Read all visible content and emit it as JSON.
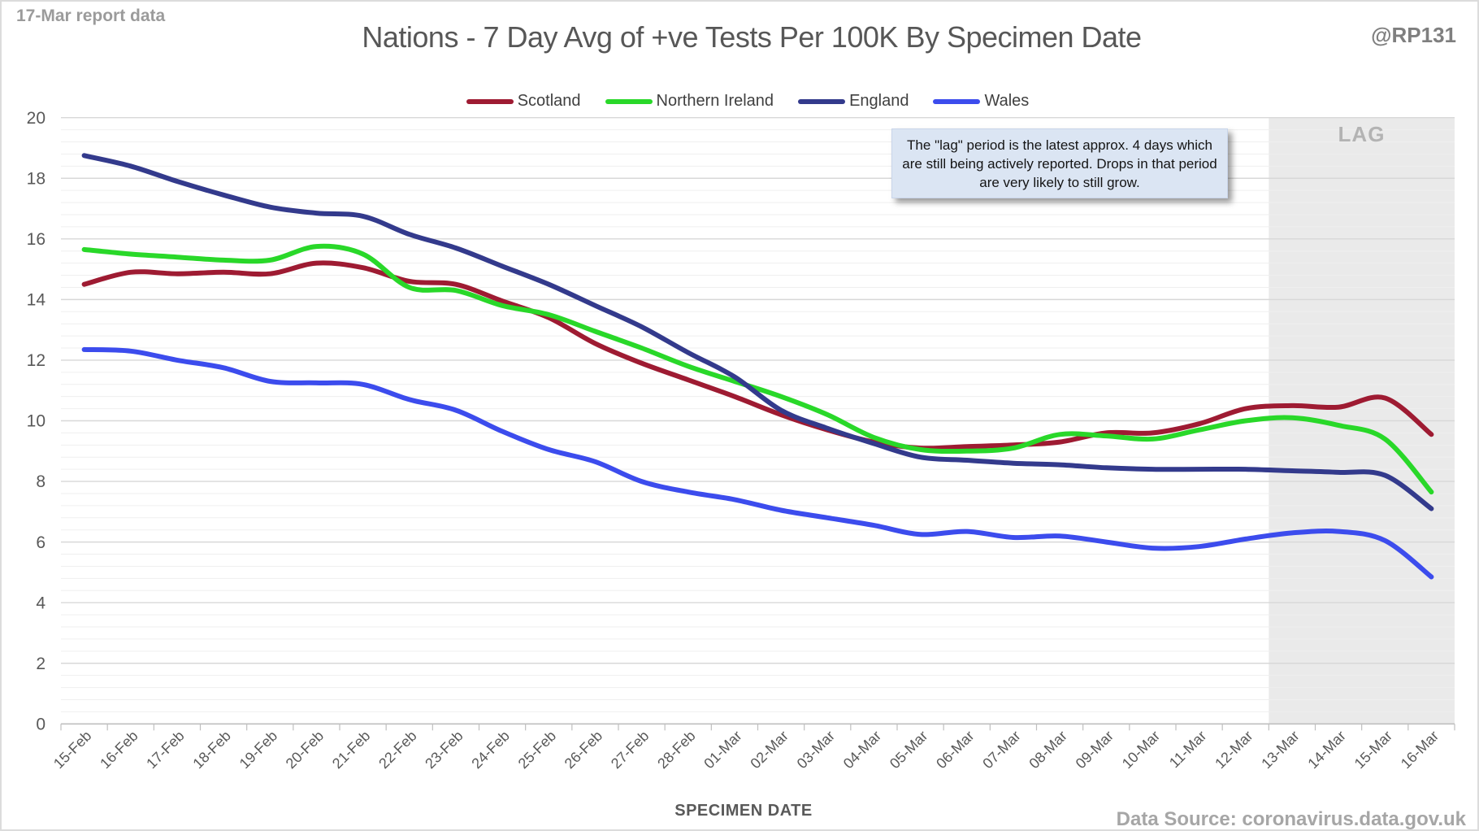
{
  "header": {
    "report_label": "17-Mar report data",
    "title": "Nations - 7 Day Avg of +ve Tests Per 100K By Specimen Date",
    "handle": "@RP131"
  },
  "labels": {
    "lag": "LAG",
    "data_source": "Data Source: coronavirus.data.gov.uk"
  },
  "annotation": {
    "text": "The \"lag\" period is the latest approx. 4 days which are still being actively reported. Drops in that period are very likely to still grow."
  },
  "colors": {
    "scotland": "#9e1b32",
    "northern_ireland": "#29d829",
    "england": "#333a8c",
    "wales": "#3c4ced",
    "lag_fill": "#eaeaea",
    "grid_minor": "#efefef",
    "grid_major": "#d8d8d8",
    "axis_line": "#bfbfbf",
    "tick": "#bfbfbf"
  },
  "chart_data": {
    "type": "line",
    "title": "Nations - 7 Day Avg of +ve Tests Per 100K By Specimen Date",
    "xlabel": "SPECIMEN DATE",
    "ylabel": "",
    "ylim": [
      0,
      20
    ],
    "y_major_step": 2,
    "y_minor_step": 0.4,
    "grid": true,
    "legend_position": "top",
    "smoothed_lines": true,
    "lag_region": {
      "start_category": "13-Mar",
      "label": "LAG"
    },
    "categories": [
      "15-Feb",
      "16-Feb",
      "17-Feb",
      "18-Feb",
      "19-Feb",
      "20-Feb",
      "21-Feb",
      "22-Feb",
      "23-Feb",
      "24-Feb",
      "25-Feb",
      "26-Feb",
      "27-Feb",
      "28-Feb",
      "01-Mar",
      "02-Mar",
      "03-Mar",
      "04-Mar",
      "05-Mar",
      "06-Mar",
      "07-Mar",
      "08-Mar",
      "09-Mar",
      "10-Mar",
      "11-Mar",
      "12-Mar",
      "13-Mar",
      "14-Mar",
      "15-Mar",
      "16-Mar"
    ],
    "series": [
      {
        "name": "Scotland",
        "color": "#9e1b32",
        "values": [
          14.5,
          14.9,
          14.85,
          14.9,
          14.85,
          15.2,
          15.05,
          14.6,
          14.5,
          13.95,
          13.4,
          12.55,
          11.9,
          11.35,
          10.8,
          10.2,
          9.7,
          9.3,
          9.1,
          9.15,
          9.2,
          9.3,
          9.6,
          9.6,
          9.9,
          10.4,
          10.5,
          10.45,
          10.75,
          9.55
        ]
      },
      {
        "name": "Northern Ireland",
        "color": "#29d829",
        "values": [
          15.65,
          15.5,
          15.4,
          15.3,
          15.3,
          15.75,
          15.5,
          14.4,
          14.3,
          13.8,
          13.5,
          12.95,
          12.4,
          11.8,
          11.3,
          10.8,
          10.2,
          9.45,
          9.05,
          9.0,
          9.1,
          9.55,
          9.5,
          9.4,
          9.7,
          10.0,
          10.1,
          9.85,
          9.4,
          7.65
        ]
      },
      {
        "name": "England",
        "color": "#333a8c",
        "values": [
          18.75,
          18.4,
          17.9,
          17.45,
          17.05,
          16.85,
          16.75,
          16.15,
          15.7,
          15.1,
          14.5,
          13.8,
          13.1,
          12.25,
          11.45,
          10.35,
          9.75,
          9.25,
          8.8,
          8.7,
          8.6,
          8.55,
          8.45,
          8.4,
          8.4,
          8.4,
          8.35,
          8.3,
          8.2,
          7.1
        ]
      },
      {
        "name": "Wales",
        "color": "#3c4ced",
        "values": [
          12.35,
          12.3,
          12.0,
          11.75,
          11.3,
          11.25,
          11.2,
          10.7,
          10.35,
          9.65,
          9.05,
          8.65,
          8.0,
          7.65,
          7.4,
          7.05,
          6.8,
          6.55,
          6.25,
          6.35,
          6.15,
          6.2,
          6.0,
          5.8,
          5.85,
          6.1,
          6.3,
          6.35,
          6.05,
          4.85
        ]
      }
    ]
  }
}
